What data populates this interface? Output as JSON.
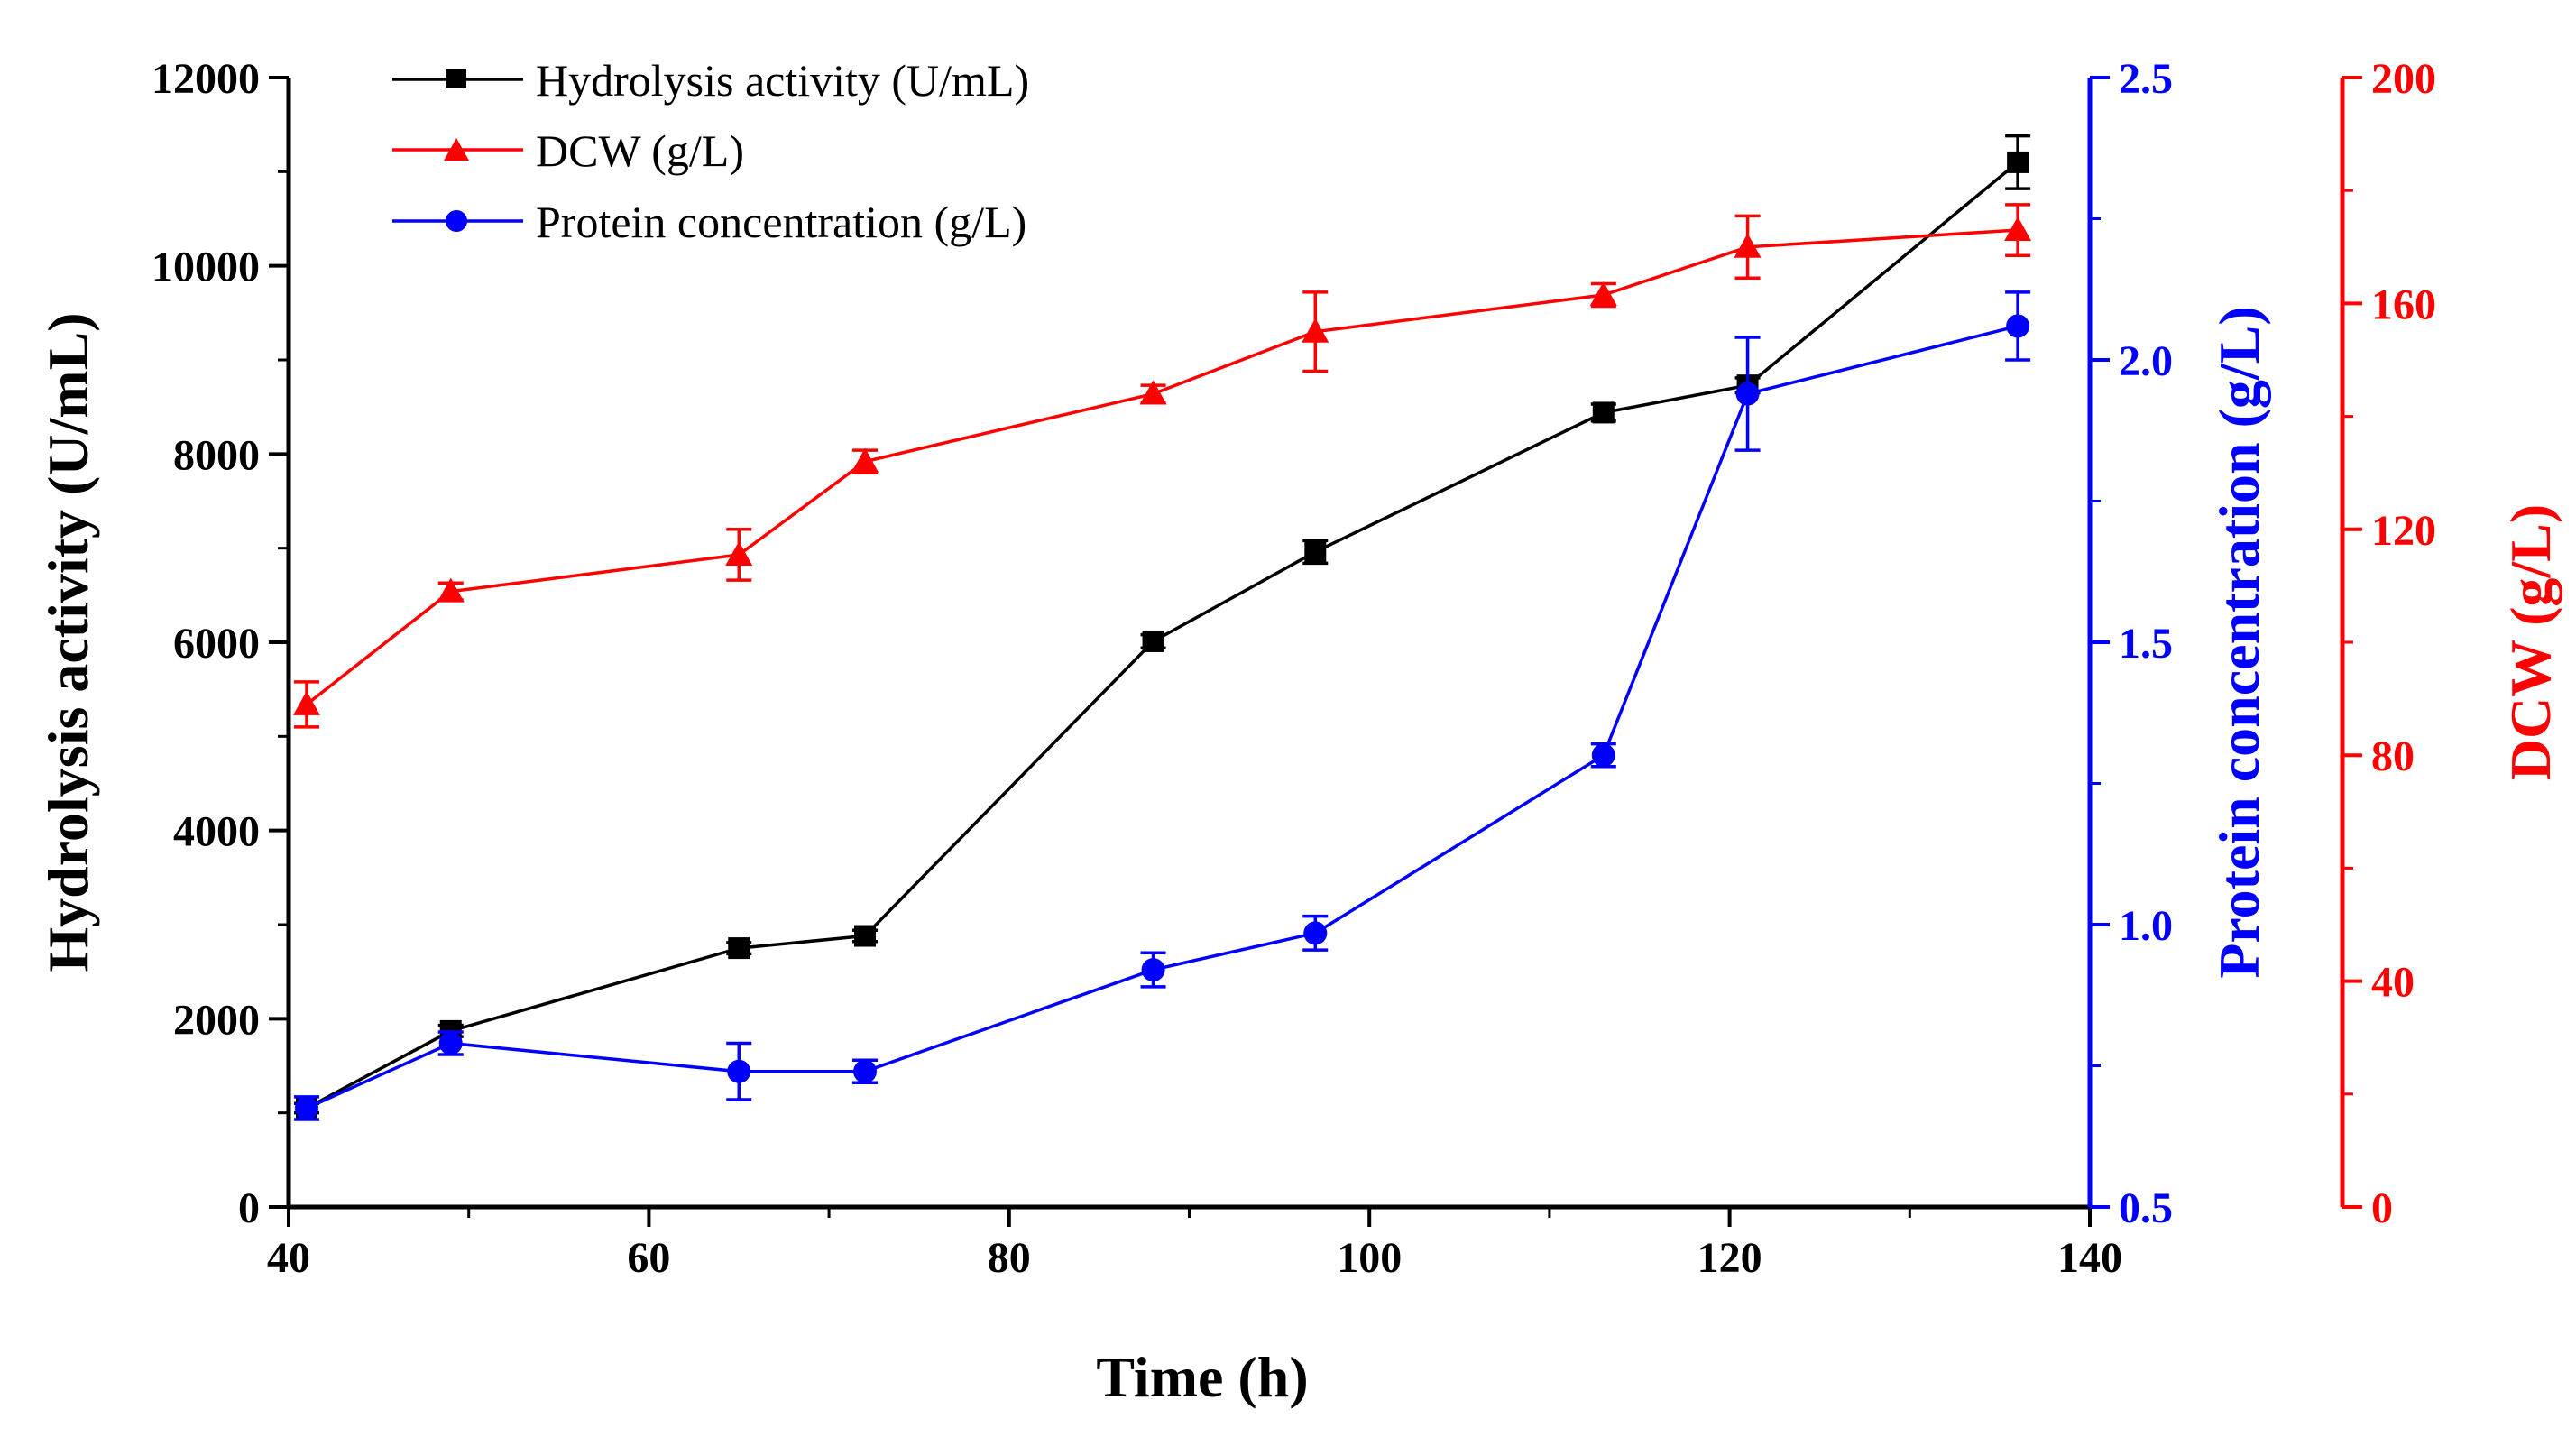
{
  "chart_data": {
    "type": "line",
    "title": "",
    "xlabel": "Time (h)",
    "xlim": [
      40,
      140
    ],
    "x_ticks": [
      "40",
      "60",
      "80",
      "100",
      "120",
      "140"
    ],
    "axes": {
      "left": {
        "label": "Hydrolysis activity (U/mL)",
        "lim": [
          0,
          12000
        ],
        "ticks": [
          "0",
          "2000",
          "4000",
          "6000",
          "8000",
          "10000",
          "12000"
        ],
        "color": "#000000"
      },
      "right1": {
        "label": "Protein concentration (g/L)",
        "lim": [
          0.5,
          2.5
        ],
        "ticks": [
          "0.5",
          "1.0",
          "1.5",
          "2.0",
          "2.5"
        ],
        "color": "#0000ff"
      },
      "right2": {
        "label": "DCW (g/L)",
        "lim": [
          0,
          200
        ],
        "ticks": [
          "0",
          "40",
          "80",
          "120",
          "160",
          "200"
        ],
        "color": "#ff0000"
      }
    },
    "legend_position": "top-left",
    "series": [
      {
        "name": "Hydrolysis activity (U/mL)",
        "axis": "left",
        "marker": "square",
        "color": "#000000",
        "x": [
          41,
          49,
          65,
          72,
          88,
          97,
          113,
          121,
          136
        ],
        "y": [
          1050,
          1870,
          2750,
          2880,
          6010,
          6960,
          8440,
          8730,
          11100
        ],
        "err": [
          50,
          60,
          60,
          60,
          70,
          120,
          90,
          80,
          280
        ]
      },
      {
        "name": "DCW (g/L)",
        "axis": "right2",
        "marker": "triangle",
        "color": "#ff0000",
        "x": [
          41,
          49,
          65,
          72,
          88,
          97,
          113,
          121,
          136
        ],
        "y": [
          89,
          109,
          115.5,
          132,
          144,
          155,
          161.5,
          170,
          173
        ],
        "err": [
          4,
          1.5,
          4.5,
          2,
          1.5,
          7,
          2,
          5.5,
          4.5
        ]
      },
      {
        "name": "Protein concentration (g/L)",
        "axis": "right1",
        "marker": "circle",
        "color": "#0000ff",
        "x": [
          41,
          49,
          65,
          72,
          88,
          97,
          113,
          121,
          136
        ],
        "y": [
          0.675,
          0.79,
          0.74,
          0.74,
          0.92,
          0.985,
          1.3,
          1.94,
          2.06
        ],
        "err": [
          0.02,
          0.02,
          0.05,
          0.02,
          0.03,
          0.03,
          0.02,
          0.1,
          0.06
        ]
      }
    ]
  }
}
